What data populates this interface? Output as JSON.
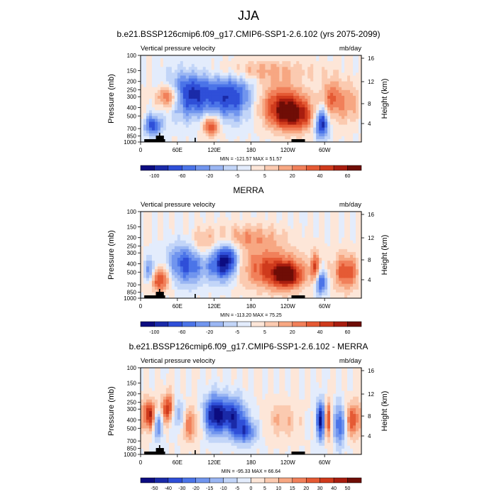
{
  "main_title": "JJA",
  "chart_data": [
    {
      "type": "heatmap",
      "title": "b.e21.BSSP126cmip6.f09_g17.CMIP6-SSP1-2.6.102 (yrs 2075-2099)",
      "left_label": "Vertical pressure velocity",
      "right_label": "mb/day",
      "ylabel": "Pressure (mb)",
      "y2label": "Height (km)",
      "xticks": [
        "0",
        "60E",
        "120E",
        "180",
        "120W",
        "60W"
      ],
      "yticks": [
        "100",
        "150",
        "200",
        "250",
        "300",
        "400",
        "500",
        "700",
        "850",
        "1000"
      ],
      "y2ticks": [
        "16",
        "12",
        "8",
        "4"
      ],
      "minmax": "MIN = -121.57  MAX =  51.57",
      "colorbar_labels": [
        "-100",
        "-60",
        "-20",
        "-5",
        "5",
        "20",
        "40",
        "60"
      ],
      "colorbar_colors": [
        "#0c0c80",
        "#1a2aa8",
        "#2f4fd8",
        "#4b74e8",
        "#7195ee",
        "#9ab6f3",
        "#c2d5f8",
        "#e3ecfc",
        "#fde6d8",
        "#fbcab0",
        "#f7a782",
        "#f1805a",
        "#e55a34",
        "#cf3a1c",
        "#a81d0f",
        "#6f0d06"
      ],
      "fields": [
        {
          "lon": 45,
          "p": 300,
          "w": 14,
          "h": 0.5,
          "v": 0.8
        },
        {
          "lon": 20,
          "p": 650,
          "w": 10,
          "h": 0.4,
          "v": -0.7
        },
        {
          "lon": 80,
          "p": 280,
          "w": 30,
          "h": 0.9,
          "v": -0.8
        },
        {
          "lon": 150,
          "p": 300,
          "w": 25,
          "h": 0.9,
          "v": -0.7
        },
        {
          "lon": 115,
          "p": 650,
          "w": 10,
          "h": 0.4,
          "v": 0.7
        },
        {
          "lon": 230,
          "p": 350,
          "w": 28,
          "h": 0.8,
          "v": 0.6
        },
        {
          "lon": 250,
          "p": 500,
          "w": 25,
          "h": 0.6,
          "v": 0.75
        },
        {
          "lon": 295,
          "p": 600,
          "w": 8,
          "h": 0.6,
          "v": -0.95
        },
        {
          "lon": 310,
          "p": 300,
          "w": 10,
          "h": 0.7,
          "v": 0.4
        },
        {
          "lon": 335,
          "p": 350,
          "w": 18,
          "h": 0.8,
          "v": 0.35
        },
        {
          "lon": 190,
          "p": 150,
          "w": 60,
          "h": 0.4,
          "v": 0.3
        }
      ]
    },
    {
      "type": "heatmap",
      "title": "MERRA",
      "left_label": "Vertical pressure velocity",
      "right_label": "mb/day",
      "ylabel": "Pressure (mb)",
      "y2label": "Height (km)",
      "xticks": [
        "0",
        "60E",
        "120E",
        "180",
        "120W",
        "60W"
      ],
      "yticks": [
        "100",
        "150",
        "200",
        "250",
        "300",
        "400",
        "500",
        "700",
        "850",
        "1000"
      ],
      "y2ticks": [
        "16",
        "12",
        "8",
        "4"
      ],
      "minmax": "MIN = -113.20  MAX =  75.25",
      "colorbar_labels": [
        "-100",
        "-60",
        "-20",
        "-5",
        "5",
        "20",
        "40",
        "60"
      ],
      "colorbar_colors": [
        "#0c0c80",
        "#1a2aa8",
        "#2f4fd8",
        "#4b74e8",
        "#7195ee",
        "#9ab6f3",
        "#c2d5f8",
        "#e3ecfc",
        "#fde6d8",
        "#fbcab0",
        "#f7a782",
        "#f1805a",
        "#e55a34",
        "#cf3a1c",
        "#a81d0f",
        "#6f0d06"
      ],
      "fields": [
        {
          "lon": 30,
          "p": 600,
          "w": 12,
          "h": 0.5,
          "v": 0.75
        },
        {
          "lon": 15,
          "p": 500,
          "w": 8,
          "h": 0.5,
          "v": -0.6
        },
        {
          "lon": 75,
          "p": 400,
          "w": 22,
          "h": 0.8,
          "v": -0.7
        },
        {
          "lon": 130,
          "p": 400,
          "w": 15,
          "h": 0.7,
          "v": -0.65
        },
        {
          "lon": 145,
          "p": 350,
          "w": 12,
          "h": 0.7,
          "v": -0.55
        },
        {
          "lon": 100,
          "p": 250,
          "w": 15,
          "h": 0.6,
          "v": 0.3
        },
        {
          "lon": 210,
          "p": 450,
          "w": 35,
          "h": 0.8,
          "v": 0.6
        },
        {
          "lon": 240,
          "p": 550,
          "w": 18,
          "h": 0.5,
          "v": 0.75
        },
        {
          "lon": 285,
          "p": 500,
          "w": 6,
          "h": 0.7,
          "v": 0.7
        },
        {
          "lon": 292,
          "p": 650,
          "w": 8,
          "h": 0.5,
          "v": -0.85
        },
        {
          "lon": 335,
          "p": 500,
          "w": 15,
          "h": 0.7,
          "v": 0.6
        },
        {
          "lon": 170,
          "p": 200,
          "w": 40,
          "h": 0.5,
          "v": 0.35
        }
      ]
    },
    {
      "type": "heatmap",
      "title": "b.e21.BSSP126cmip6.f09_g17.CMIP6-SSP1-2.6.102 - MERRA",
      "left_label": "Vertical pressure velocity",
      "right_label": "mb/day",
      "ylabel": "Pressure (mb)",
      "y2label": "Height (km)",
      "xticks": [
        "0",
        "60E",
        "120E",
        "180",
        "120W",
        "60W"
      ],
      "yticks": [
        "100",
        "150",
        "200",
        "250",
        "300",
        "400",
        "500",
        "700",
        "850",
        "1000"
      ],
      "y2ticks": [
        "16",
        "12",
        "8",
        "4"
      ],
      "minmax": "MIN = -95.33  MAX =  66.64",
      "colorbar_labels": [
        "-50",
        "-40",
        "-30",
        "-20",
        "-15",
        "-10",
        "-5",
        "0",
        "5",
        "10",
        "15",
        "20",
        "30",
        "40",
        "50"
      ],
      "colorbar_colors": [
        "#0c0c80",
        "#1a2aa8",
        "#2f4fd8",
        "#4b74e8",
        "#7195ee",
        "#9ab6f3",
        "#c2d5f8",
        "#e3ecfc",
        "#fde6d8",
        "#fbcab0",
        "#f7a782",
        "#f1805a",
        "#e55a34",
        "#cf3a1c",
        "#a81d0f",
        "#6f0d06"
      ],
      "fields": [
        {
          "lon": 15,
          "p": 350,
          "w": 8,
          "h": 0.6,
          "v": 0.8
        },
        {
          "lon": 28,
          "p": 450,
          "w": 6,
          "h": 0.6,
          "v": -0.6
        },
        {
          "lon": 45,
          "p": 300,
          "w": 8,
          "h": 0.6,
          "v": 0.75
        },
        {
          "lon": 60,
          "p": 350,
          "w": 8,
          "h": 0.6,
          "v": -0.5
        },
        {
          "lon": 80,
          "p": 450,
          "w": 10,
          "h": 0.7,
          "v": 0.45
        },
        {
          "lon": 120,
          "p": 350,
          "w": 12,
          "h": 0.8,
          "v": -0.85
        },
        {
          "lon": 150,
          "p": 350,
          "w": 15,
          "h": 0.7,
          "v": -0.75
        },
        {
          "lon": 170,
          "p": 550,
          "w": 15,
          "h": 0.5,
          "v": -0.6
        },
        {
          "lon": 230,
          "p": 400,
          "w": 20,
          "h": 0.7,
          "v": 0.25
        },
        {
          "lon": 295,
          "p": 400,
          "w": 6,
          "h": 0.8,
          "v": -0.95
        },
        {
          "lon": 305,
          "p": 400,
          "w": 5,
          "h": 0.8,
          "v": 0.8
        },
        {
          "lon": 325,
          "p": 450,
          "w": 8,
          "h": 0.8,
          "v": -0.7
        },
        {
          "lon": 345,
          "p": 400,
          "w": 10,
          "h": 0.7,
          "v": 0.6
        }
      ]
    }
  ]
}
